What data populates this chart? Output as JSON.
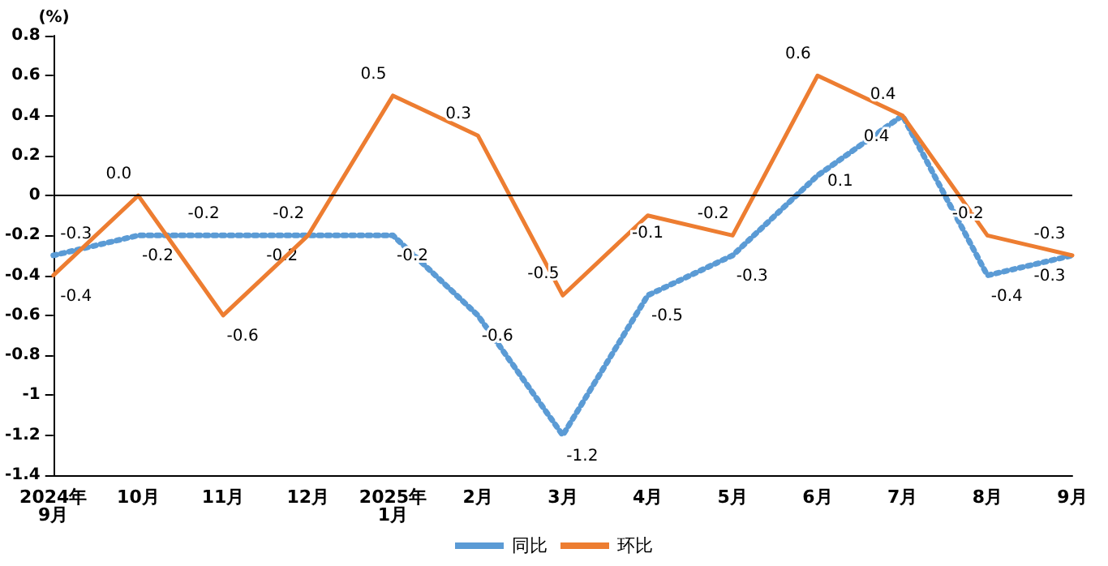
{
  "chart_data": {
    "type": "line",
    "ylabel": "(%)",
    "categories": [
      "2024年\n9月",
      "10月",
      "11月",
      "12月",
      "2025年\n1月",
      "2月",
      "3月",
      "4月",
      "5月",
      "6月",
      "7月",
      "8月",
      "9月"
    ],
    "series": [
      {
        "name": "同比",
        "color": "#5b9bd5",
        "line_style": "dotted",
        "values": [
          -0.3,
          -0.2,
          -0.2,
          -0.2,
          -0.2,
          -0.6,
          -1.2,
          -0.5,
          -0.3,
          0.1,
          0.4,
          -0.4,
          -0.3
        ],
        "value_labels": [
          "-0.3",
          "-0.2",
          "-0.2",
          "-0.2",
          "-0.2",
          "-0.6",
          "-1.2",
          "-0.5",
          "-0.3",
          "0.1",
          "0.4",
          "-0.4",
          "-0.3"
        ]
      },
      {
        "name": "环比",
        "color": "#ed7d31",
        "line_style": "solid",
        "values": [
          -0.4,
          0.0,
          -0.6,
          -0.2,
          0.5,
          0.3,
          -0.5,
          -0.1,
          -0.2,
          0.6,
          0.4,
          -0.2,
          -0.3
        ],
        "value_labels": [
          "-0.4",
          "0.0",
          "-0.6",
          "-0.2",
          "0.5",
          "0.3",
          "-0.5",
          "-0.1",
          "-0.2",
          "0.6",
          "0.4",
          "-0.2",
          "-0.3"
        ]
      }
    ],
    "ylim": [
      -1.4,
      0.8
    ],
    "yticks": [
      0.8,
      0.6,
      0.4,
      0.2,
      0,
      -0.2,
      -0.4,
      -0.6,
      -0.8,
      -1,
      -1.2,
      -1.4
    ],
    "ref_lines": [
      {
        "axis": "y",
        "value": 0,
        "color": "#000000"
      }
    ],
    "grid": false,
    "legend": "bottom",
    "marker": "none"
  }
}
